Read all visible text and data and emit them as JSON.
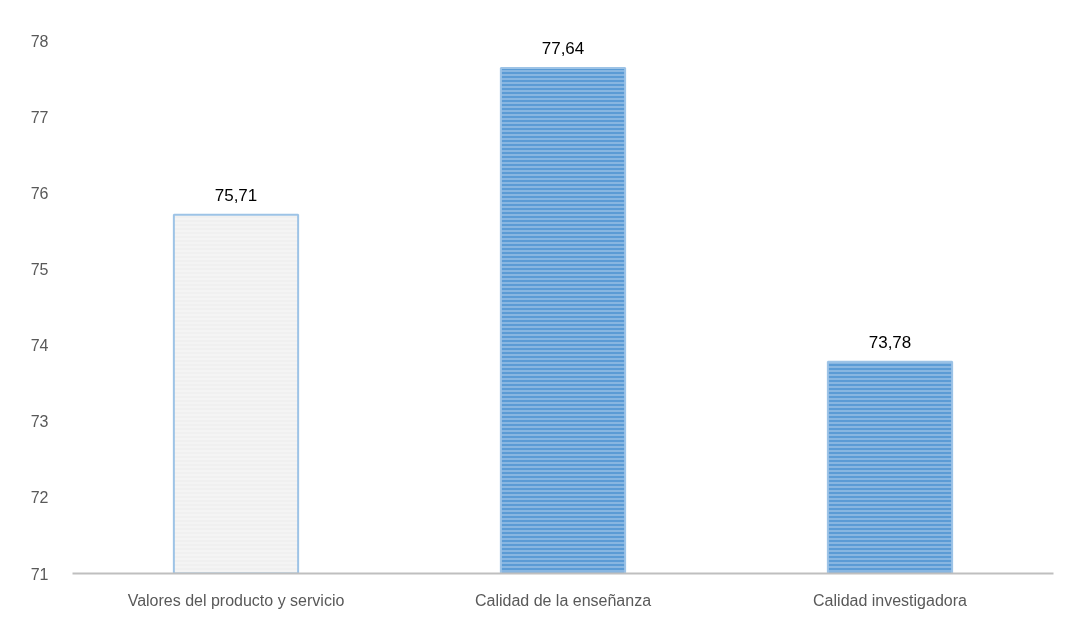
{
  "chart_data": {
    "type": "bar",
    "categories": [
      "Valores del producto y servicio",
      "Calidad de la enseñanza",
      "Calidad investigadora"
    ],
    "values": [
      75.71,
      77.64,
      73.78
    ],
    "colors": [
      "#f0f0f0",
      "#5b9bd5",
      "#5b9bd5"
    ],
    "value_labels": [
      "75,71",
      "77,64",
      "73,78"
    ],
    "ylim": [
      71,
      78
    ],
    "yticks": [
      71,
      72,
      73,
      74,
      75,
      76,
      77,
      78
    ],
    "grid": false
  }
}
